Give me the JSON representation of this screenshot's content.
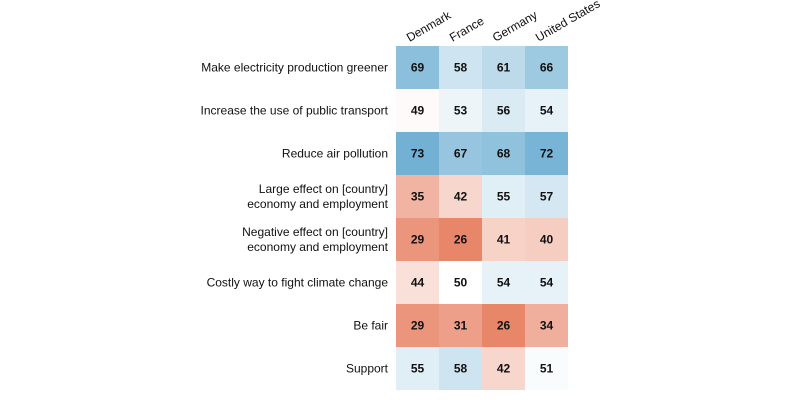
{
  "chart_data": {
    "type": "heatmap",
    "title": "",
    "xlabel": "",
    "ylabel": "",
    "columns": [
      "Denmark",
      "France",
      "Germany",
      "United States"
    ],
    "rows": [
      {
        "label": [
          "Make electricity production greener"
        ],
        "values": [
          69,
          58,
          61,
          66
        ]
      },
      {
        "label": [
          "Increase the use of public transport"
        ],
        "values": [
          49,
          53,
          56,
          54
        ]
      },
      {
        "label": [
          "Reduce air pollution"
        ],
        "values": [
          73,
          67,
          68,
          72
        ]
      },
      {
        "label": [
          "Large effect on [country]",
          "economy and employment"
        ],
        "values": [
          35,
          42,
          55,
          57
        ]
      },
      {
        "label": [
          "Negative effect on [country]",
          "economy and employment"
        ],
        "values": [
          29,
          26,
          41,
          40
        ]
      },
      {
        "label": [
          "Costly way to fight climate change"
        ],
        "values": [
          44,
          50,
          54,
          54
        ]
      },
      {
        "label": [
          "Be fair"
        ],
        "values": [
          29,
          31,
          26,
          34
        ]
      },
      {
        "label": [
          "Support"
        ],
        "values": [
          55,
          58,
          42,
          51
        ]
      }
    ],
    "color_scale": {
      "low_color": "#e8866a",
      "mid_color": "#ffffff",
      "high_color": "#72b1d4",
      "low": 26,
      "mid": 50,
      "high": 73
    },
    "grid": false,
    "legend": "none"
  }
}
